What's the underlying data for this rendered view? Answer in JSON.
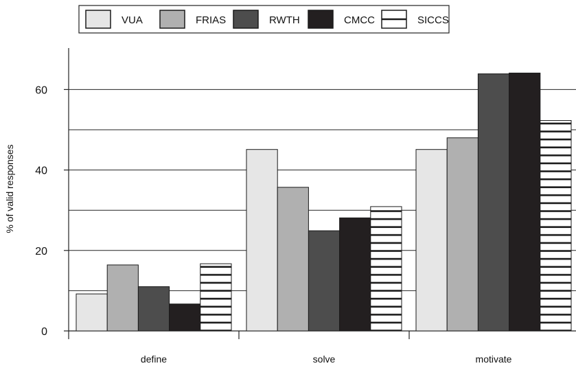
{
  "chart_data": {
    "type": "bar",
    "categories": [
      "define",
      "solve",
      "motivate"
    ],
    "series": [
      {
        "name": "VUA",
        "color": "#e6e6e6",
        "pattern": "solid",
        "values": [
          9.2,
          45.1,
          45.1
        ]
      },
      {
        "name": "FRIAS",
        "color": "#b0b0b0",
        "pattern": "solid",
        "values": [
          16.4,
          35.7,
          48.0
        ]
      },
      {
        "name": "RWTH",
        "color": "#4d4d4d",
        "pattern": "solid",
        "values": [
          11.0,
          24.9,
          63.9
        ]
      },
      {
        "name": "CMCC",
        "color": "#231f20",
        "pattern": "solid",
        "values": [
          6.7,
          28.1,
          64.1
        ]
      },
      {
        "name": "SICCS",
        "color": "#ffffff",
        "pattern": "horizontal",
        "values": [
          16.7,
          30.9,
          52.3
        ]
      }
    ],
    "ylabel": "% of valid responses",
    "xlabel": "",
    "ylim": [
      0,
      70
    ],
    "yticks": [
      0,
      20,
      40,
      60
    ],
    "ytick_labels": [
      "0",
      "20",
      "40",
      "60"
    ],
    "grid": true,
    "legend_position": "top"
  }
}
